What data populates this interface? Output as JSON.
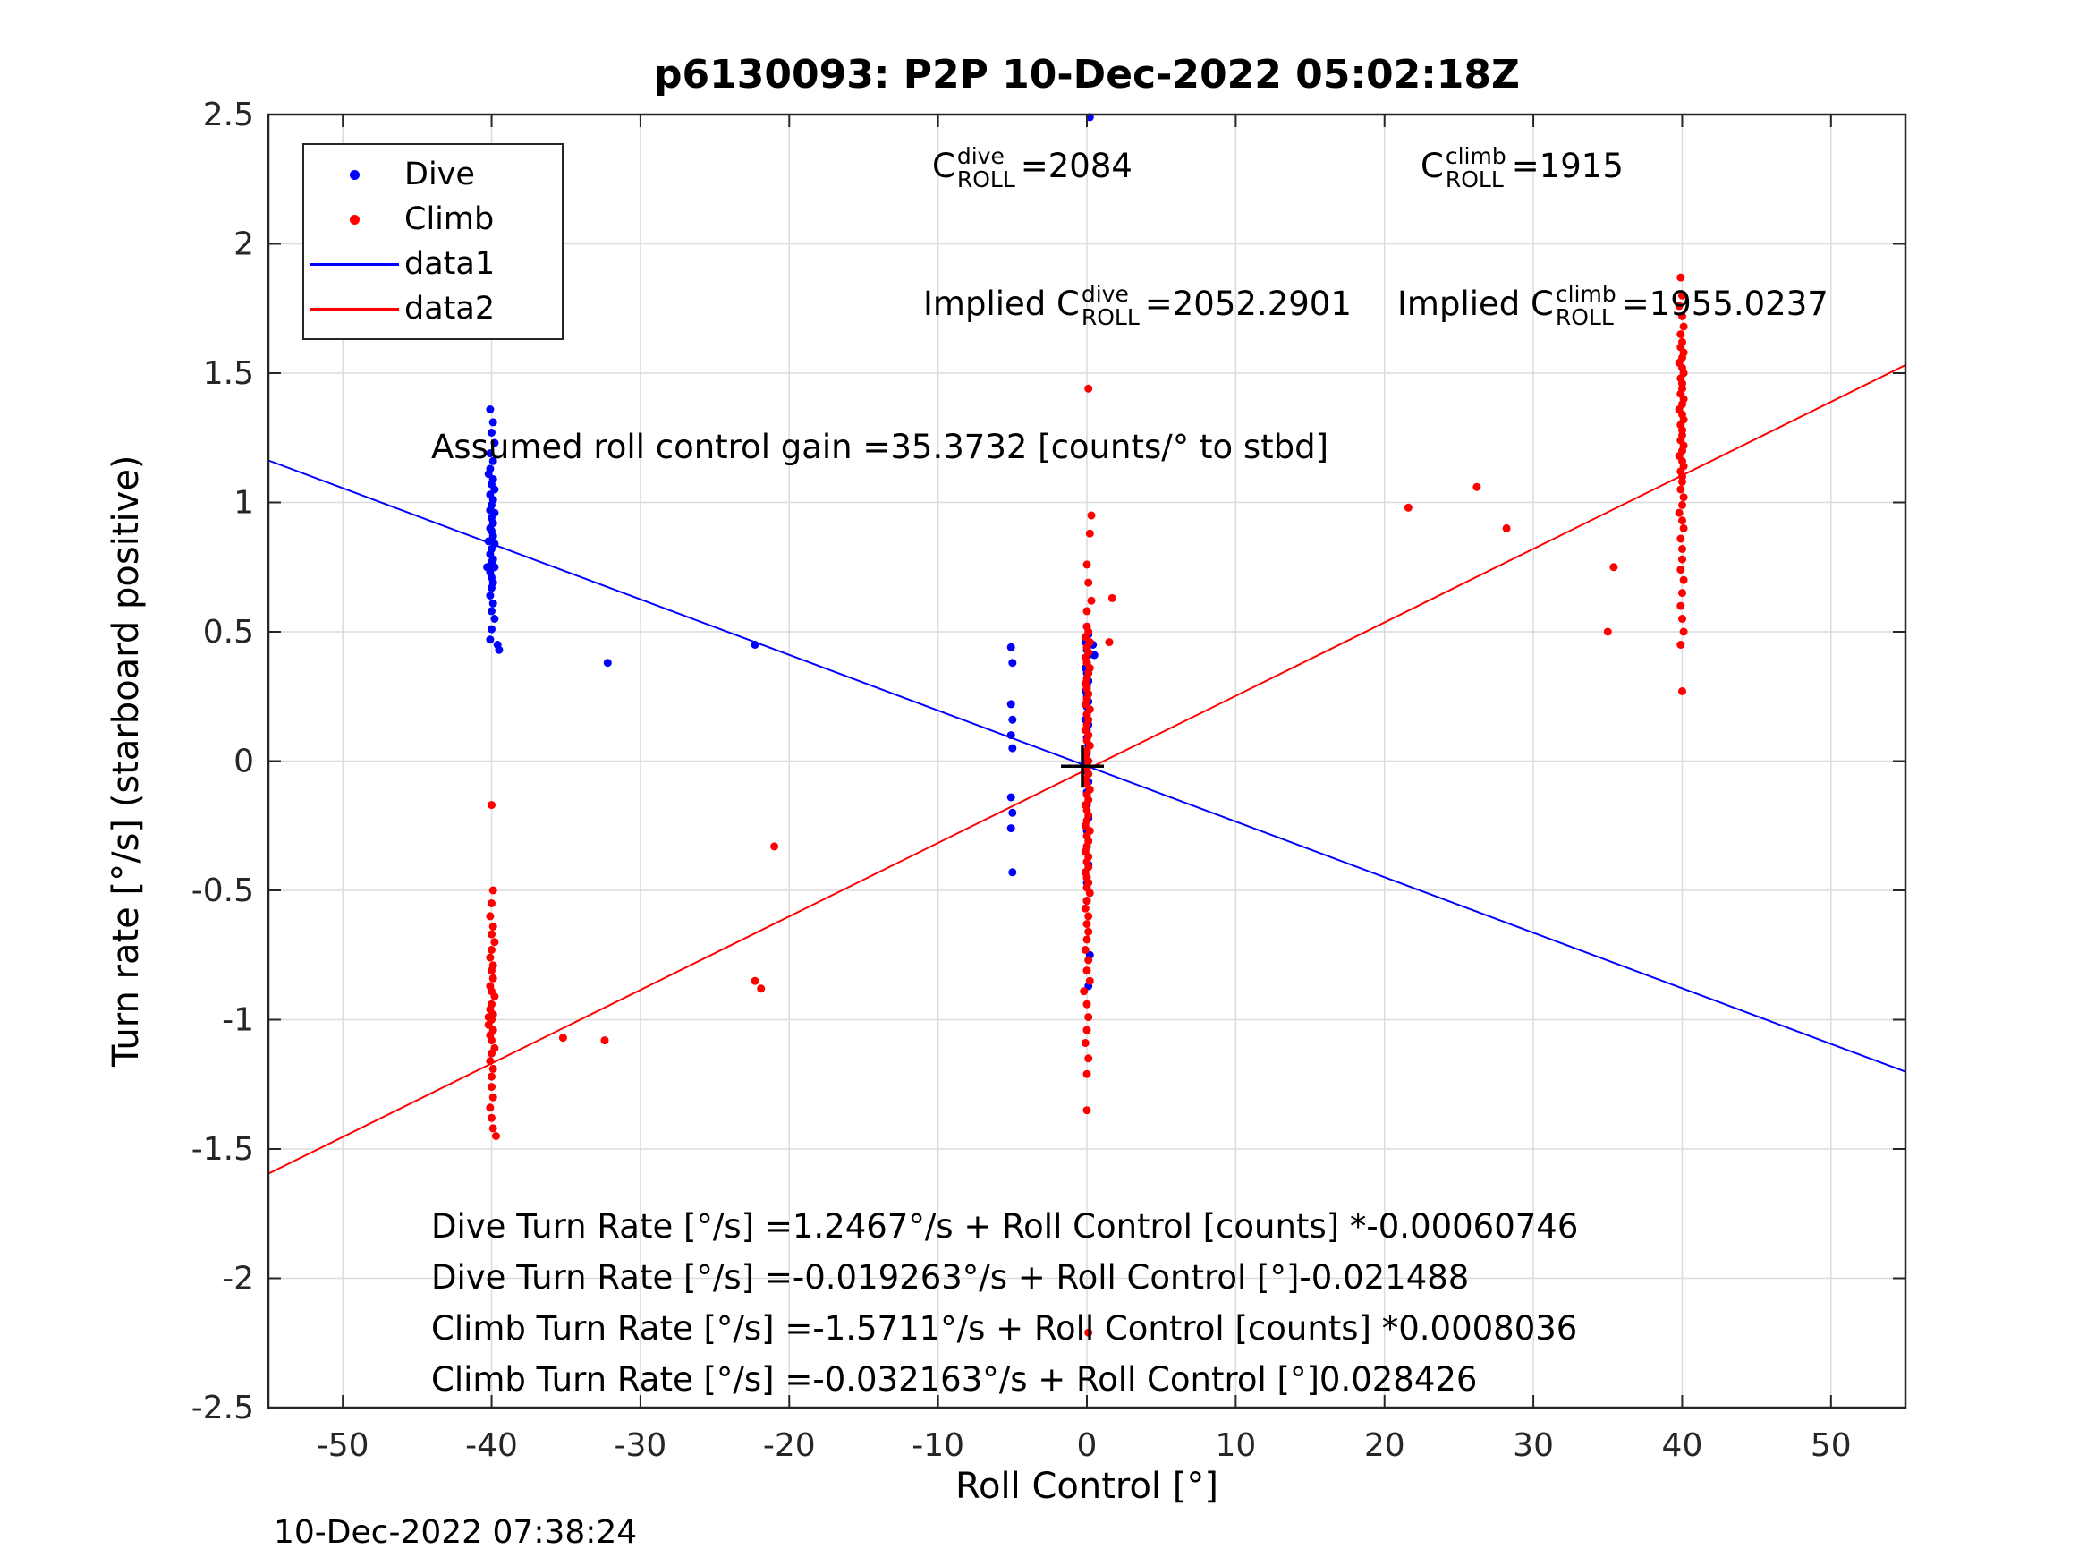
{
  "figure": {
    "title": "p6130093: P2P 10-Dec-2022 05:02:18Z",
    "footer_timestamp": "10-Dec-2022 07:38:24"
  },
  "legend": {
    "position": "upper-left",
    "entries": [
      {
        "label": "Dive",
        "marker": "dot",
        "color": "#0000ff"
      },
      {
        "label": "Climb",
        "marker": "dot",
        "color": "#ff0000"
      },
      {
        "label": "data1",
        "marker": "line",
        "color": "#0000ff"
      },
      {
        "label": "data2",
        "marker": "line",
        "color": "#ff0000"
      }
    ]
  },
  "annotations": {
    "c_dive": {
      "prefix": "C",
      "sup": "dive",
      "sub": "ROLL",
      "value": "=2084"
    },
    "c_climb": {
      "prefix": "C",
      "sup": "climb",
      "sub": "ROLL",
      "value": "=1915"
    },
    "implied_dive": {
      "prefix": "Implied C",
      "sup": "dive",
      "sub": "ROLL",
      "value": "=2052.2901"
    },
    "implied_climb": {
      "prefix": "Implied C",
      "sup": "climb",
      "sub": "ROLL",
      "value": "=1955.0237"
    },
    "gain": "Assumed roll control gain =35.3732 [counts/° to stbd]",
    "eq_lines": [
      "Dive Turn Rate [°/s] =1.2467°/s + Roll Control [counts] *-0.00060746",
      "Dive Turn Rate [°/s] =-0.019263°/s + Roll Control [°]-0.021488",
      "Climb Turn Rate [°/s] =-1.5711°/s + Roll Control [counts] *0.0008036",
      "Climb Turn Rate [°/s] =-0.032163°/s + Roll Control [°]0.028426"
    ]
  },
  "chart_data": {
    "type": "scatter",
    "title": "p6130093: P2P 10-Dec-2022 05:02:18Z",
    "xlabel": "Roll Control [°]",
    "ylabel": "Turn rate [°/s] (starboard positive)",
    "xlim": [
      -55,
      55
    ],
    "ylim": [
      -2.5,
      2.5
    ],
    "xticks": [
      -50,
      -40,
      -30,
      -20,
      -10,
      0,
      10,
      20,
      30,
      40,
      50
    ],
    "yticks": [
      -2.5,
      -2,
      -1.5,
      -1,
      -0.5,
      0,
      0.5,
      1,
      1.5,
      2,
      2.5
    ],
    "grid": true,
    "grid_color": "#dcdcdc",
    "axis_color": "#262626",
    "legend_position": "upper-left",
    "origin_marker": {
      "type": "plus",
      "x": -0.3,
      "y": -0.02,
      "color": "#000000"
    },
    "series": [
      {
        "name": "Dive",
        "type": "scatter",
        "color": "#0000ff",
        "points": [
          [
            -40.1,
            1.36
          ],
          [
            -39.9,
            1.31
          ],
          [
            -40.0,
            1.27
          ],
          [
            -39.8,
            1.23
          ],
          [
            -40.1,
            1.19
          ],
          [
            -39.9,
            1.16
          ],
          [
            -40.1,
            1.13
          ],
          [
            -40.2,
            1.11
          ],
          [
            -39.9,
            1.09
          ],
          [
            -40.0,
            1.07
          ],
          [
            -39.8,
            1.05
          ],
          [
            -40.1,
            1.03
          ],
          [
            -39.9,
            1.01
          ],
          [
            -40.0,
            0.99
          ],
          [
            -40.1,
            0.97
          ],
          [
            -39.8,
            0.96
          ],
          [
            -40.0,
            0.94
          ],
          [
            -39.9,
            0.92
          ],
          [
            -40.1,
            0.9
          ],
          [
            -40.0,
            0.89
          ],
          [
            -39.9,
            0.87
          ],
          [
            -40.2,
            0.85
          ],
          [
            -39.8,
            0.84
          ],
          [
            -40.0,
            0.82
          ],
          [
            -40.1,
            0.8
          ],
          [
            -39.9,
            0.78
          ],
          [
            -40.0,
            0.77
          ],
          [
            -39.8,
            0.75
          ],
          [
            -40.3,
            0.75
          ],
          [
            -40.1,
            0.73
          ],
          [
            -40.0,
            0.71
          ],
          [
            -39.9,
            0.69
          ],
          [
            -40.0,
            0.67
          ],
          [
            -40.1,
            0.64
          ],
          [
            -39.9,
            0.61
          ],
          [
            -40.0,
            0.58
          ],
          [
            -39.8,
            0.55
          ],
          [
            -40.0,
            0.51
          ],
          [
            -40.1,
            0.47
          ],
          [
            -39.6,
            0.45
          ],
          [
            -39.5,
            0.43
          ],
          [
            -32.2,
            0.38
          ],
          [
            -22.3,
            0.45
          ],
          [
            -5.1,
            0.44
          ],
          [
            -5.0,
            0.38
          ],
          [
            -5.1,
            0.22
          ],
          [
            -5.0,
            0.16
          ],
          [
            -5.1,
            0.1
          ],
          [
            -5.0,
            0.05
          ],
          [
            -5.1,
            -0.14
          ],
          [
            -5.0,
            -0.2
          ],
          [
            -5.1,
            -0.26
          ],
          [
            -5.0,
            -0.43
          ],
          [
            0.2,
            2.49
          ],
          [
            0.0,
            0.52
          ],
          [
            0.1,
            0.49
          ],
          [
            -0.1,
            0.46
          ],
          [
            0.0,
            0.43
          ],
          [
            0.4,
            0.45
          ],
          [
            0.5,
            0.41
          ],
          [
            0.1,
            0.41
          ],
          [
            0.0,
            0.38
          ],
          [
            -0.1,
            0.36
          ],
          [
            0.0,
            0.34
          ],
          [
            0.1,
            0.31
          ],
          [
            0.0,
            0.29
          ],
          [
            -0.1,
            0.27
          ],
          [
            0.0,
            0.25
          ],
          [
            0.1,
            0.23
          ],
          [
            0.0,
            0.21
          ],
          [
            0.0,
            0.18
          ],
          [
            -0.1,
            0.16
          ],
          [
            0.1,
            0.14
          ],
          [
            0.0,
            0.12
          ],
          [
            0.0,
            0.09
          ],
          [
            0.1,
            0.06
          ],
          [
            0.0,
            0.03
          ],
          [
            -0.1,
            0.0
          ],
          [
            0.0,
            -0.04
          ],
          [
            0.1,
            -0.08
          ],
          [
            0.0,
            -0.12
          ],
          [
            0.0,
            -0.17
          ],
          [
            0.1,
            -0.22
          ],
          [
            0.0,
            -0.27
          ],
          [
            0.0,
            -0.33
          ],
          [
            0.1,
            -0.4
          ],
          [
            0.0,
            -0.47
          ],
          [
            0.0,
            -0.54
          ],
          [
            0.2,
            -0.75
          ],
          [
            0.1,
            -0.87
          ]
        ]
      },
      {
        "name": "Climb",
        "type": "scatter",
        "color": "#ff0000",
        "points": [
          [
            -40.0,
            -0.17
          ],
          [
            -39.9,
            -0.5
          ],
          [
            -40.0,
            -0.55
          ],
          [
            -40.1,
            -0.6
          ],
          [
            -39.9,
            -0.64
          ],
          [
            -40.0,
            -0.67
          ],
          [
            -39.8,
            -0.7
          ],
          [
            -40.0,
            -0.73
          ],
          [
            -40.1,
            -0.76
          ],
          [
            -39.9,
            -0.79
          ],
          [
            -40.0,
            -0.81
          ],
          [
            -39.9,
            -0.84
          ],
          [
            -40.1,
            -0.87
          ],
          [
            -40.0,
            -0.89
          ],
          [
            -39.8,
            -0.91
          ],
          [
            -40.0,
            -0.94
          ],
          [
            -40.1,
            -0.96
          ],
          [
            -39.9,
            -0.98
          ],
          [
            -40.2,
            -0.99
          ],
          [
            -40.0,
            -1.0
          ],
          [
            -40.2,
            -1.02
          ],
          [
            -39.9,
            -1.04
          ],
          [
            -40.1,
            -1.06
          ],
          [
            -40.0,
            -1.08
          ],
          [
            -39.8,
            -1.11
          ],
          [
            -40.0,
            -1.13
          ],
          [
            -40.1,
            -1.16
          ],
          [
            -39.9,
            -1.19
          ],
          [
            -40.0,
            -1.22
          ],
          [
            -40.0,
            -1.26
          ],
          [
            -39.9,
            -1.3
          ],
          [
            -40.1,
            -1.34
          ],
          [
            -40.0,
            -1.38
          ],
          [
            -39.9,
            -1.42
          ],
          [
            -39.7,
            -1.45
          ],
          [
            -35.2,
            -1.07
          ],
          [
            -32.4,
            -1.08
          ],
          [
            -22.3,
            -0.85
          ],
          [
            -21.9,
            -0.88
          ],
          [
            -21.0,
            -0.33
          ],
          [
            0.1,
            1.44
          ],
          [
            0.3,
            0.95
          ],
          [
            0.2,
            0.88
          ],
          [
            0.0,
            0.76
          ],
          [
            0.1,
            0.69
          ],
          [
            0.3,
            0.62
          ],
          [
            1.7,
            0.63
          ],
          [
            0.0,
            0.58
          ],
          [
            1.5,
            0.46
          ],
          [
            0.0,
            0.52
          ],
          [
            0.1,
            0.5
          ],
          [
            -0.1,
            0.48
          ],
          [
            0.2,
            0.46
          ],
          [
            0.0,
            0.44
          ],
          [
            0.1,
            0.42
          ],
          [
            -0.1,
            0.4
          ],
          [
            0.0,
            0.38
          ],
          [
            0.2,
            0.36
          ],
          [
            0.1,
            0.34
          ],
          [
            0.0,
            0.32
          ],
          [
            -0.1,
            0.3
          ],
          [
            0.0,
            0.28
          ],
          [
            0.1,
            0.26
          ],
          [
            0.0,
            0.24
          ],
          [
            -0.1,
            0.22
          ],
          [
            0.2,
            0.2
          ],
          [
            0.0,
            0.18
          ],
          [
            0.1,
            0.16
          ],
          [
            0.0,
            0.14
          ],
          [
            -0.1,
            0.12
          ],
          [
            0.1,
            0.1
          ],
          [
            0.0,
            0.08
          ],
          [
            0.2,
            0.06
          ],
          [
            0.0,
            0.04
          ],
          [
            -0.1,
            0.02
          ],
          [
            0.1,
            0.0
          ],
          [
            0.0,
            -0.02
          ],
          [
            0.1,
            -0.05
          ],
          [
            -0.1,
            -0.07
          ],
          [
            0.0,
            -0.09
          ],
          [
            0.2,
            -0.11
          ],
          [
            0.0,
            -0.13
          ],
          [
            0.1,
            -0.15
          ],
          [
            -0.1,
            -0.17
          ],
          [
            0.0,
            -0.19
          ],
          [
            0.1,
            -0.21
          ],
          [
            0.0,
            -0.23
          ],
          [
            -0.1,
            -0.25
          ],
          [
            0.2,
            -0.27
          ],
          [
            0.0,
            -0.29
          ],
          [
            0.1,
            -0.31
          ],
          [
            0.0,
            -0.33
          ],
          [
            -0.1,
            -0.35
          ],
          [
            0.1,
            -0.37
          ],
          [
            0.0,
            -0.39
          ],
          [
            0.1,
            -0.41
          ],
          [
            -0.1,
            -0.43
          ],
          [
            0.0,
            -0.45
          ],
          [
            0.1,
            -0.47
          ],
          [
            0.0,
            -0.49
          ],
          [
            0.2,
            -0.51
          ],
          [
            0.0,
            -0.54
          ],
          [
            -0.1,
            -0.57
          ],
          [
            0.1,
            -0.6
          ],
          [
            0.0,
            -0.63
          ],
          [
            0.1,
            -0.66
          ],
          [
            0.0,
            -0.69
          ],
          [
            -0.1,
            -0.73
          ],
          [
            0.1,
            -0.77
          ],
          [
            0.0,
            -0.81
          ],
          [
            0.2,
            -0.85
          ],
          [
            -0.2,
            -0.89
          ],
          [
            0.0,
            -0.94
          ],
          [
            0.1,
            -0.99
          ],
          [
            0.0,
            -1.04
          ],
          [
            -0.1,
            -1.09
          ],
          [
            0.1,
            -1.15
          ],
          [
            0.0,
            -1.21
          ],
          [
            0.0,
            -1.35
          ],
          [
            0.1,
            -2.21
          ],
          [
            21.6,
            0.98
          ],
          [
            26.2,
            1.06
          ],
          [
            28.2,
            0.9
          ],
          [
            35.4,
            0.75
          ],
          [
            35.0,
            0.5
          ],
          [
            39.9,
            1.87
          ],
          [
            40.0,
            1.8
          ],
          [
            39.8,
            1.76
          ],
          [
            40.0,
            1.72
          ],
          [
            40.1,
            1.68
          ],
          [
            39.9,
            1.65
          ],
          [
            40.0,
            1.62
          ],
          [
            39.9,
            1.6
          ],
          [
            40.1,
            1.58
          ],
          [
            40.0,
            1.56
          ],
          [
            39.8,
            1.54
          ],
          [
            40.0,
            1.52
          ],
          [
            40.1,
            1.5
          ],
          [
            39.9,
            1.48
          ],
          [
            40.0,
            1.46
          ],
          [
            40.0,
            1.44
          ],
          [
            39.9,
            1.42
          ],
          [
            40.1,
            1.4
          ],
          [
            40.0,
            1.38
          ],
          [
            39.8,
            1.36
          ],
          [
            40.0,
            1.34
          ],
          [
            40.1,
            1.32
          ],
          [
            39.9,
            1.3
          ],
          [
            40.0,
            1.28
          ],
          [
            40.0,
            1.26
          ],
          [
            39.9,
            1.24
          ],
          [
            40.1,
            1.22
          ],
          [
            40.0,
            1.2
          ],
          [
            39.8,
            1.18
          ],
          [
            40.0,
            1.16
          ],
          [
            40.1,
            1.14
          ],
          [
            39.9,
            1.12
          ],
          [
            40.0,
            1.1
          ],
          [
            40.0,
            1.08
          ],
          [
            39.9,
            1.05
          ],
          [
            40.1,
            1.02
          ],
          [
            40.0,
            0.99
          ],
          [
            39.8,
            0.96
          ],
          [
            40.0,
            0.93
          ],
          [
            40.1,
            0.9
          ],
          [
            39.9,
            0.86
          ],
          [
            40.0,
            0.82
          ],
          [
            40.0,
            0.78
          ],
          [
            39.9,
            0.74
          ],
          [
            40.1,
            0.7
          ],
          [
            40.0,
            0.65
          ],
          [
            39.9,
            0.6
          ],
          [
            40.0,
            0.55
          ],
          [
            40.1,
            0.5
          ],
          [
            39.9,
            0.45
          ],
          [
            40.0,
            0.27
          ]
        ]
      },
      {
        "name": "data1",
        "type": "line",
        "color": "#0000ff",
        "intercept": -0.019263,
        "slope": -0.021488
      },
      {
        "name": "data2",
        "type": "line",
        "color": "#ff0000",
        "intercept": -0.032163,
        "slope": 0.028426
      }
    ]
  }
}
